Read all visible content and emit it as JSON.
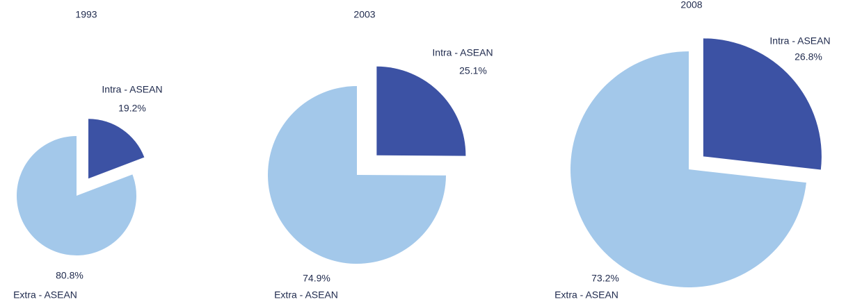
{
  "chart_data": [
    {
      "type": "pie",
      "title": "1993",
      "categories": [
        "Intra - ASEAN",
        "Extra - ASEAN"
      ],
      "values": [
        19.2,
        80.8
      ],
      "value_labels": [
        "19.2%",
        "80.8%"
      ],
      "colors": [
        "#3c52a4",
        "#a3c8ea"
      ]
    },
    {
      "type": "pie",
      "title": "2003",
      "categories": [
        "Intra - ASEAN",
        "Extra - ASEAN"
      ],
      "values": [
        25.1,
        74.9
      ],
      "value_labels": [
        "25.1%",
        "74.9%"
      ],
      "colors": [
        "#3c52a4",
        "#a3c8ea"
      ]
    },
    {
      "type": "pie",
      "title": "2008",
      "categories": [
        "Intra - ASEAN",
        "Extra - ASEAN"
      ],
      "values": [
        26.8,
        73.2
      ],
      "value_labels": [
        "26.8%",
        "73.2%"
      ],
      "colors": [
        "#3c52a4",
        "#a3c8ea"
      ]
    }
  ]
}
